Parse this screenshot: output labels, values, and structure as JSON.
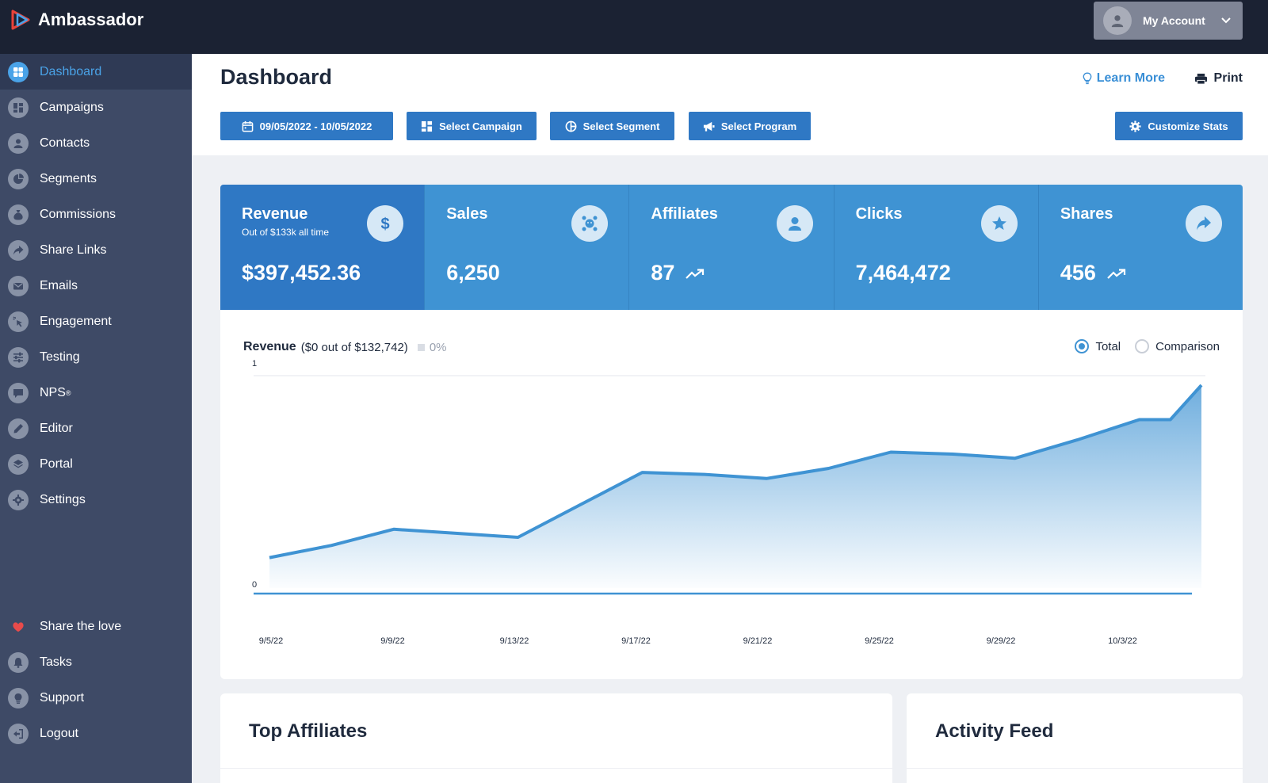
{
  "app": {
    "name": "Ambassador"
  },
  "account": {
    "label": "My Account"
  },
  "sidebar": {
    "items": [
      {
        "label": "Dashboard",
        "icon": "dashboard-icon",
        "active": true
      },
      {
        "label": "Campaigns",
        "icon": "campaigns-icon"
      },
      {
        "label": "Contacts",
        "icon": "contacts-icon"
      },
      {
        "label": "Segments",
        "icon": "segments-icon"
      },
      {
        "label": "Commissions",
        "icon": "money-bag-icon"
      },
      {
        "label": "Share Links",
        "icon": "share-icon"
      },
      {
        "label": "Emails",
        "icon": "envelope-icon"
      },
      {
        "label": "Engagement",
        "icon": "cursor-click-icon"
      },
      {
        "label": "Testing",
        "icon": "sliders-icon"
      },
      {
        "label": "NPS",
        "icon": "chat-icon",
        "sup": "®"
      },
      {
        "label": "Editor",
        "icon": "pencil-icon"
      },
      {
        "label": "Portal",
        "icon": "layers-icon"
      },
      {
        "label": "Settings",
        "icon": "gear-icon"
      }
    ],
    "bottom_items": [
      {
        "label": "Share the love",
        "icon": "heart-icon"
      },
      {
        "label": "Tasks",
        "icon": "bell-icon"
      },
      {
        "label": "Support",
        "icon": "lightbulb-icon"
      },
      {
        "label": "Logout",
        "icon": "logout-icon"
      }
    ]
  },
  "header": {
    "title": "Dashboard",
    "learn_more": "Learn More",
    "print": "Print",
    "filters": {
      "date_range": "09/05/2022 - 10/05/2022",
      "campaign": "Select Campaign",
      "segment": "Select Segment",
      "program": "Select Program"
    },
    "customize": "Customize Stats"
  },
  "stats": [
    {
      "label": "Revenue",
      "sub": "Out of $133k all time",
      "value": "$397,452.36",
      "icon": "dollar-icon",
      "trend": false
    },
    {
      "label": "Sales",
      "value": "6,250",
      "icon": "sales-icon",
      "trend": false
    },
    {
      "label": "Affiliates",
      "value": "87",
      "icon": "affiliates-icon",
      "trend": true
    },
    {
      "label": "Clicks",
      "value": "7,464,472",
      "icon": "star-icon",
      "trend": false
    },
    {
      "label": "Shares",
      "value": "456",
      "icon": "share-arrow-icon",
      "trend": true
    }
  ],
  "chart_header": {
    "title": "Revenue",
    "detail": "($0 out of $132,742)",
    "percent": "0%",
    "toggle_total": "Total",
    "toggle_comparison": "Comparison",
    "selected": "Total"
  },
  "chart_data": {
    "type": "area",
    "x": [
      "9/5/22",
      "9/7/22",
      "9/9/22",
      "9/11/22",
      "9/13/22",
      "9/15/22",
      "9/17/22",
      "9/19/22",
      "9/21/22",
      "9/23/22",
      "9/25/22",
      "9/27/22",
      "9/29/22",
      "10/1/22",
      "10/3/22",
      "10/4/22",
      "10/5/22"
    ],
    "x_ticks": [
      "9/5/22",
      "9/9/22",
      "9/13/22",
      "9/17/22",
      "9/21/22",
      "9/25/22",
      "9/29/22",
      "10/3/22"
    ],
    "y_ticks": [
      "0",
      "1"
    ],
    "ylim": [
      0,
      1
    ],
    "series": [
      {
        "values": [
          0.15,
          0.21,
          0.29,
          0.27,
          0.25,
          0.41,
          0.57,
          0.56,
          0.54,
          0.59,
          0.67,
          0.66,
          0.64,
          0.73,
          0.83,
          0.83,
          1.0
        ]
      }
    ],
    "color": "#3f93d3",
    "grid": false
  },
  "cards": {
    "top_affiliates": "Top Affiliates",
    "activity_feed": "Activity Feed"
  }
}
